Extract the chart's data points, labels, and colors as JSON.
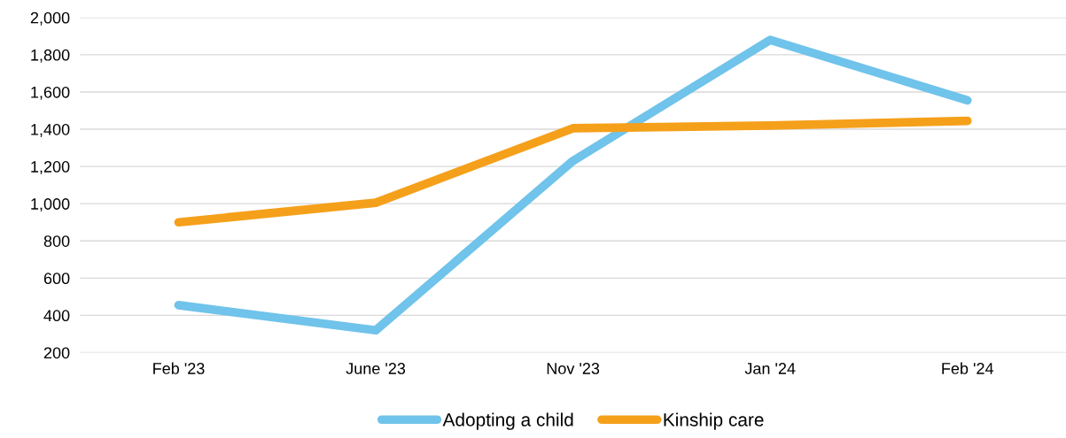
{
  "chart_data": {
    "type": "line",
    "categories": [
      "Feb '23",
      "June '23",
      "Nov '23",
      "Jan '24",
      "Feb '24"
    ],
    "series": [
      {
        "name": "Adopting a child",
        "color": "#70c3ea",
        "values": [
          455,
          320,
          1230,
          1880,
          1555
        ]
      },
      {
        "name": "Kinship care",
        "color": "#f5a01a",
        "values": [
          900,
          1005,
          1405,
          1420,
          1445
        ]
      }
    ],
    "ylim": [
      200,
      2000
    ],
    "yticks": [
      {
        "value": 200,
        "label": "200"
      },
      {
        "value": 400,
        "label": "400"
      },
      {
        "value": 600,
        "label": "600"
      },
      {
        "value": 800,
        "label": "800"
      },
      {
        "value": 1000,
        "label": "1,000"
      },
      {
        "value": 1200,
        "label": "1,200"
      },
      {
        "value": 1400,
        "label": "1,400"
      },
      {
        "value": 1600,
        "label": "1,600"
      },
      {
        "value": 1800,
        "label": "1,800"
      },
      {
        "value": 2000,
        "label": "2,000"
      }
    ],
    "grid": "y",
    "legend": "bottom",
    "marker": "none",
    "line_style": "solid"
  }
}
